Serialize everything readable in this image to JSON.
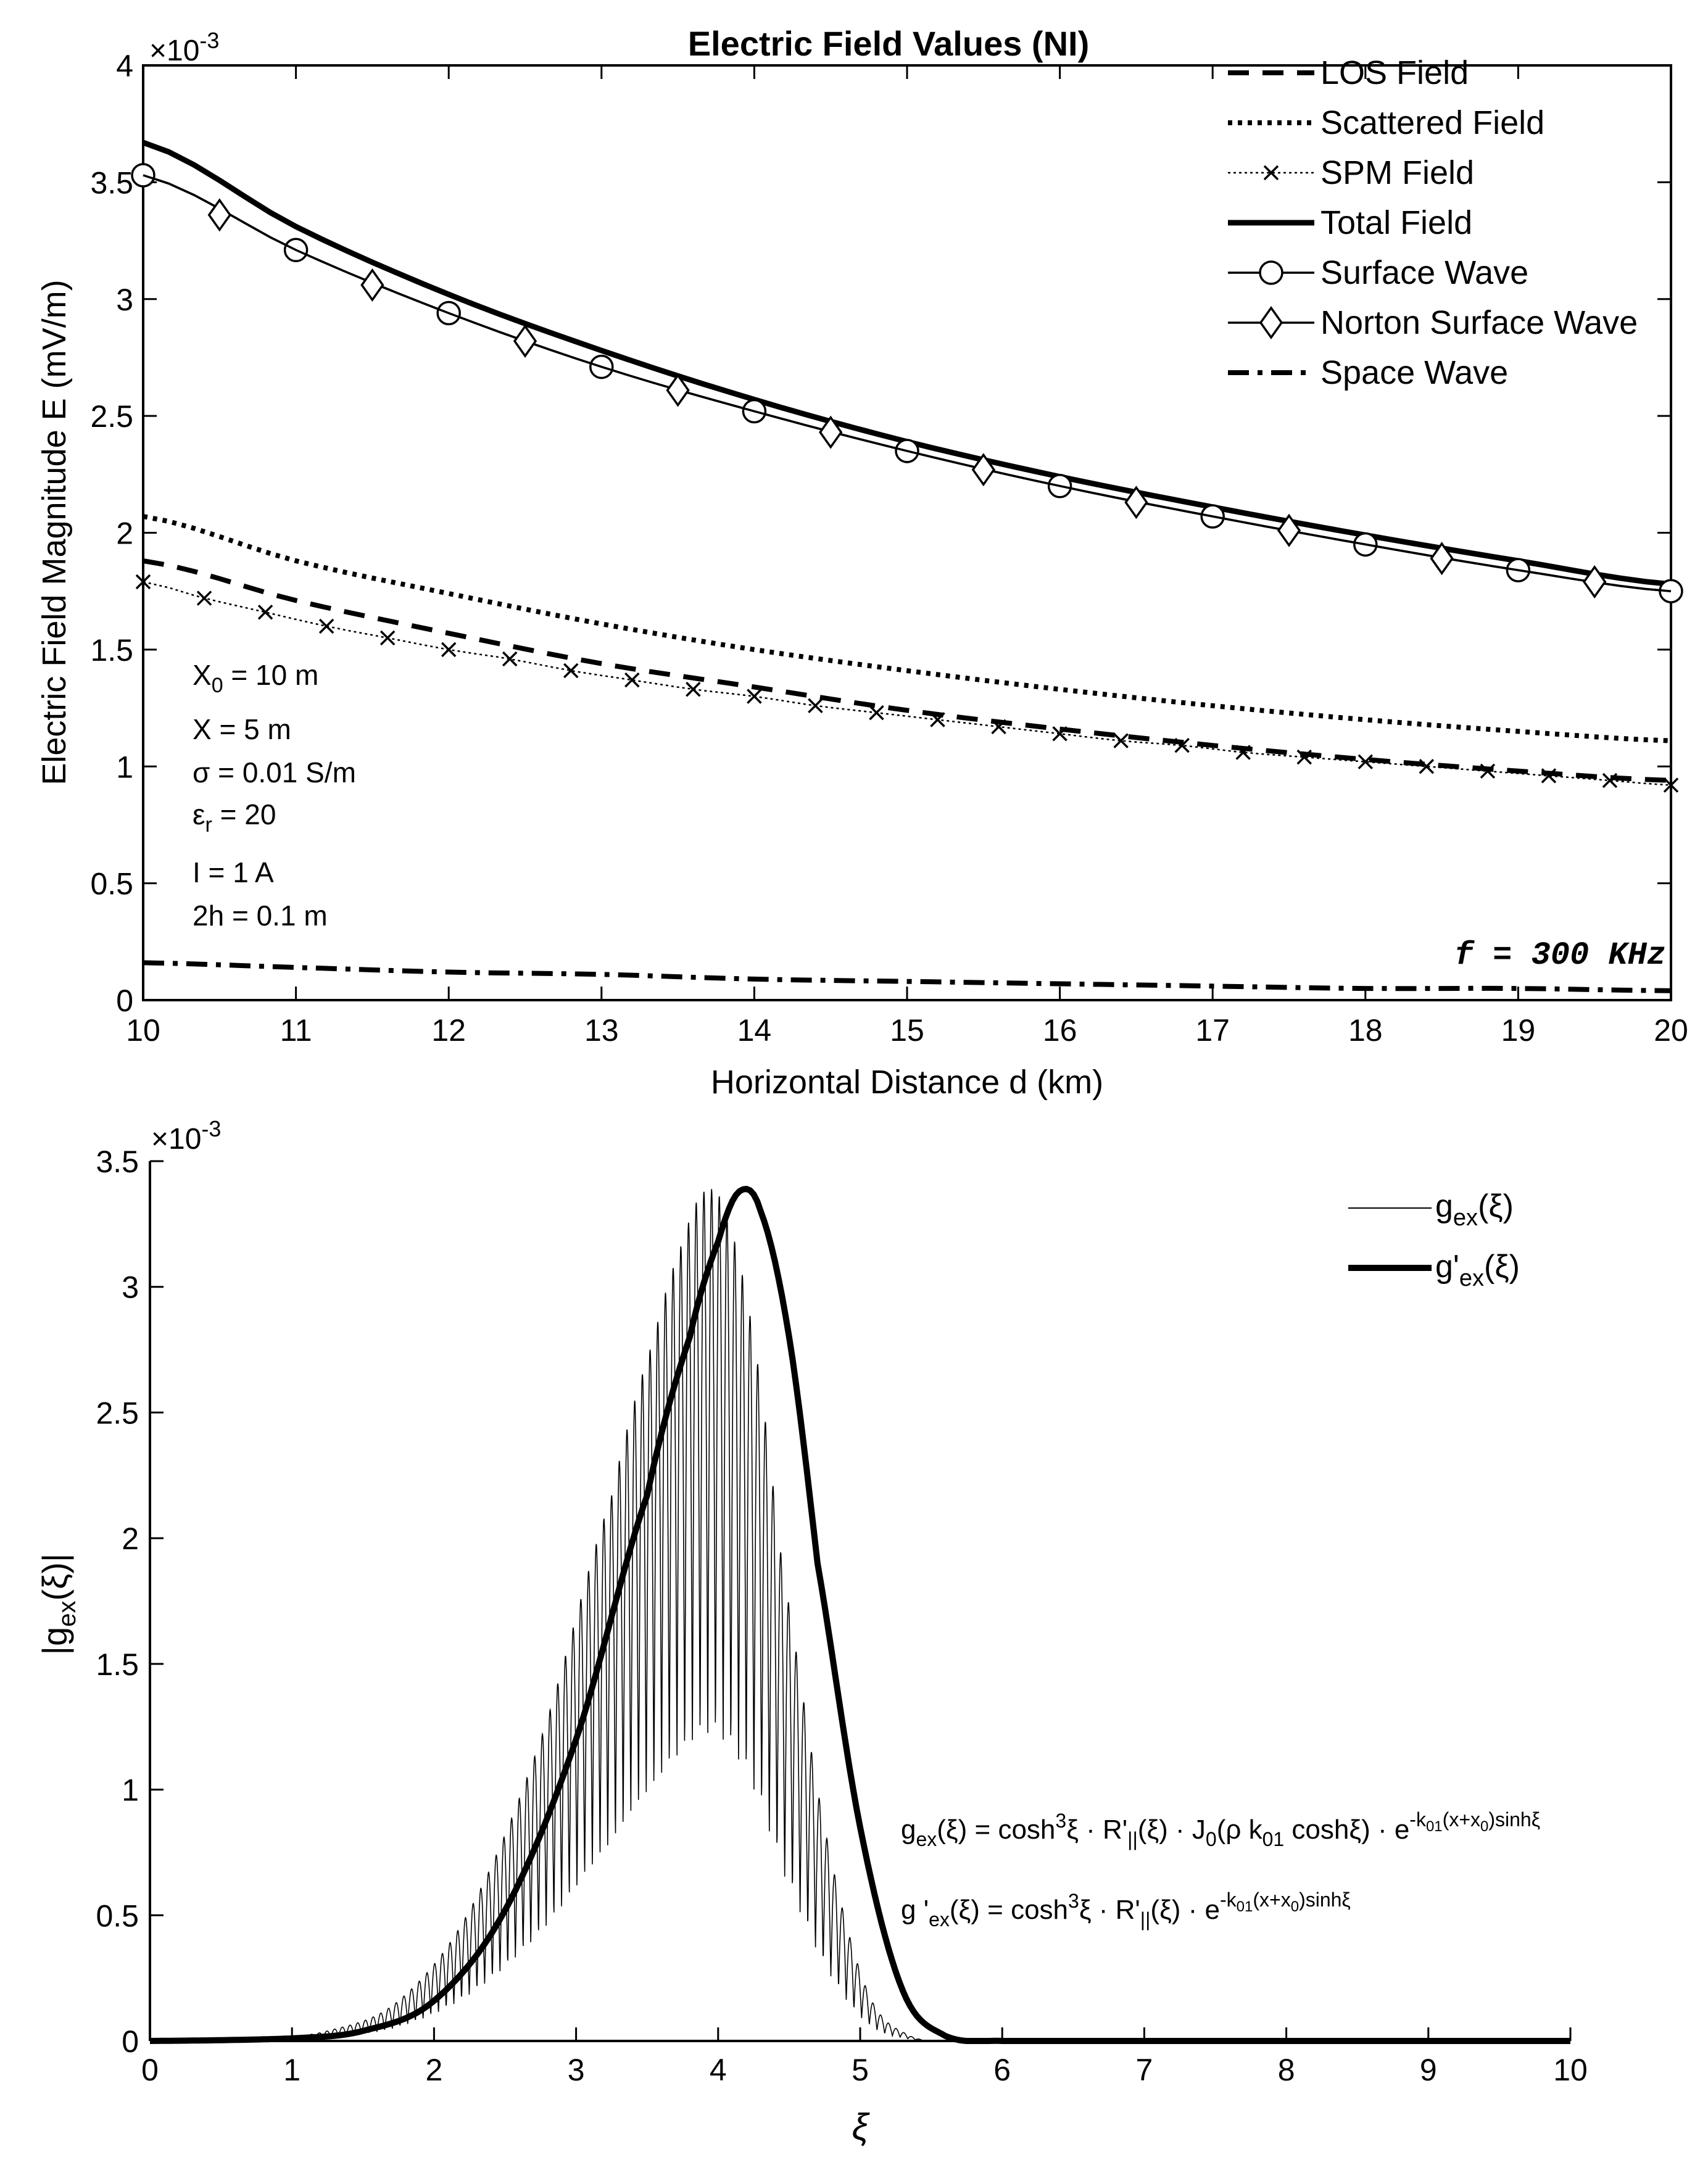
{
  "chart_data": [
    {
      "type": "line",
      "title": "Electric Field Values (NI)",
      "xlabel": "Horizontal Distance  d (km)",
      "ylabel": "Electric Field Magnitude  E (mV/m)",
      "y_exponent": "-3",
      "xlim": [
        10,
        20
      ],
      "ylim": [
        0,
        4
      ],
      "xticks": [
        "10",
        "11",
        "12",
        "13",
        "14",
        "15",
        "16",
        "17",
        "18",
        "19",
        "20"
      ],
      "yticks": [
        "0",
        "0.5",
        "1",
        "1.5",
        "2",
        "2.5",
        "3",
        "3.5",
        "4"
      ],
      "legend_position": "top-right",
      "series": [
        {
          "name": "LOS Field",
          "style": "dashed",
          "x": [
            10,
            11,
            12,
            13,
            14,
            15,
            16,
            17,
            18,
            19,
            20
          ],
          "values": [
            1.88,
            1.71,
            1.57,
            1.44,
            1.34,
            1.24,
            1.16,
            1.09,
            1.03,
            0.98,
            0.94
          ]
        },
        {
          "name": "Scattered Field",
          "style": "dotted",
          "x": [
            10,
            11,
            12,
            13,
            14,
            15,
            16,
            17,
            18,
            19,
            20
          ],
          "values": [
            2.07,
            1.88,
            1.74,
            1.61,
            1.5,
            1.41,
            1.33,
            1.26,
            1.2,
            1.15,
            1.11
          ]
        },
        {
          "name": "SPM Field",
          "style": "dotted-x",
          "x": [
            10,
            10.4,
            10.8,
            11.2,
            11.6,
            12,
            12.4,
            12.8,
            13.2,
            13.6,
            14,
            14.4,
            14.8,
            15.2,
            15.6,
            16,
            16.4,
            16.8,
            17.2,
            17.6,
            18,
            18.4,
            18.8,
            19.2,
            19.6,
            20
          ],
          "values": [
            1.79,
            1.72,
            1.66,
            1.6,
            1.55,
            1.5,
            1.46,
            1.41,
            1.37,
            1.33,
            1.3,
            1.26,
            1.23,
            1.2,
            1.17,
            1.14,
            1.11,
            1.09,
            1.06,
            1.04,
            1.02,
            1.0,
            0.98,
            0.96,
            0.94,
            0.92
          ]
        },
        {
          "name": "Total Field",
          "style": "solid-thick",
          "x": [
            10,
            11,
            12,
            13,
            14,
            15,
            16,
            17,
            18,
            19,
            20
          ],
          "values": [
            3.67,
            3.31,
            3.02,
            2.78,
            2.57,
            2.39,
            2.24,
            2.11,
            1.99,
            1.88,
            1.78
          ]
        },
        {
          "name": "Surface Wave",
          "style": "solid-circle",
          "x": [
            10,
            11,
            12,
            13,
            14,
            15,
            16,
            17,
            18,
            19,
            20
          ],
          "values": [
            3.53,
            3.21,
            2.94,
            2.71,
            2.52,
            2.35,
            2.2,
            2.07,
            1.95,
            1.84,
            1.75
          ]
        },
        {
          "name": "Norton Surface Wave",
          "style": "solid-diamond",
          "x": [
            10.5,
            11.5,
            12.5,
            13.5,
            14.5,
            15.5,
            16.5,
            17.5,
            18.5,
            19.5
          ],
          "values": [
            3.36,
            3.06,
            2.82,
            2.61,
            2.43,
            2.27,
            2.13,
            2.01,
            1.89,
            1.79
          ]
        },
        {
          "name": "Space Wave",
          "style": "dashdot",
          "x": [
            10,
            11,
            12,
            13,
            14,
            15,
            16,
            17,
            18,
            19,
            20
          ],
          "values": [
            0.16,
            0.14,
            0.12,
            0.11,
            0.09,
            0.08,
            0.07,
            0.06,
            0.05,
            0.05,
            0.04
          ]
        }
      ],
      "annotations": {
        "params": [
          "X_0 = 10 m",
          "X = 5 m",
          "σ = 0.01 S/m",
          "ε_r = 20",
          "I = 1 A",
          "2h = 0.1 m"
        ],
        "param_x0_base": "X",
        "param_x0_sub": "0",
        "param_x0_rest": " = 10 m",
        "param_x": "X = 5 m",
        "param_sigma": "σ = 0.01 S/m",
        "param_eps_base": "ε",
        "param_eps_sub": "r",
        "param_eps_rest": " = 20",
        "param_i": "I = 1 A",
        "param_2h": "2h = 0.1 m",
        "frequency": "f = 300 KHz"
      }
    },
    {
      "type": "line",
      "xlabel": "ξ",
      "ylabel": "|g_ex(ξ)|",
      "y_exponent": "-3",
      "xlim": [
        0,
        10
      ],
      "ylim": [
        0,
        3.5
      ],
      "xticks": [
        "0",
        "1",
        "2",
        "3",
        "4",
        "5",
        "6",
        "7",
        "8",
        "9",
        "10"
      ],
      "yticks": [
        "0",
        "0.5",
        "1",
        "1.5",
        "2",
        "2.5",
        "3",
        "3.5"
      ],
      "legend_position": "top-right",
      "series": [
        {
          "name": "g_ex(ξ)",
          "style": "thin-oscillating",
          "envelope": {
            "peak_x": 3.9,
            "peak_y": 3.38,
            "x_range": [
              0,
              5.7
            ]
          }
        },
        {
          "name": "g'_ex(ξ)",
          "style": "thick",
          "x": [
            0,
            1,
            1.5,
            2,
            2.5,
            3,
            3.5,
            3.8,
            4.0,
            4.15,
            4.3,
            4.5,
            4.7,
            5.0,
            5.3,
            5.6,
            6,
            10
          ],
          "values": [
            0,
            0.01,
            0.04,
            0.16,
            0.52,
            1.2,
            2.17,
            2.8,
            3.18,
            3.38,
            3.3,
            2.8,
            1.9,
            0.85,
            0.2,
            0.02,
            0,
            0
          ]
        }
      ],
      "annotations": {
        "formula1": "g_ex(ξ) = cosh^3ξ · R'_||(ξ) · J_0(ρ k_01 coshξ) · e^(-k_01(x+x_0)sinhξ)",
        "formula2": "g'_ex(ξ) = cosh^3ξ · R'_||(ξ) · e^(-k_01(x+x_0)sinhξ)"
      }
    }
  ],
  "text": {
    "top_title": "Electric Field Values (NI)",
    "top_xlabel": "Horizontal Distance  d (km)",
    "top_ylabel": "Electric Field Magnitude  E (mV/m)",
    "exp_times": "×10",
    "exp_value": "-3",
    "legend_top": [
      "LOS Field",
      "Scattered Field",
      "SPM Field",
      "Total Field",
      "Surface Wave",
      "Norton Surface Wave",
      "Space Wave"
    ],
    "bottom_xlabel": "ξ",
    "bottom_ylabel_pre": "|g",
    "bottom_ylabel_sub": "ex",
    "bottom_ylabel_post": "(ξ)|",
    "g_base": "g",
    "g_sub": "ex",
    "g_arg": "(ξ)",
    "gp_base": "g'",
    "f_eq": " = cosh",
    "f_cube": "3",
    "f_xi_dot": "ξ · R'",
    "f_par": "||",
    "f_rest1": "(ξ) · J",
    "f_zero": "0",
    "f_rest2": "(ρ k",
    "f_01": "01",
    "f_rest3": " coshξ) · e",
    "f_exp1": "-k",
    "f_exp_01": "01",
    "f_exp2": "(x+x",
    "f_exp_0": "0",
    "f_exp3": ")sinhξ",
    "f2_gp": "g '",
    "f2_rest": "(ξ) · e"
  }
}
